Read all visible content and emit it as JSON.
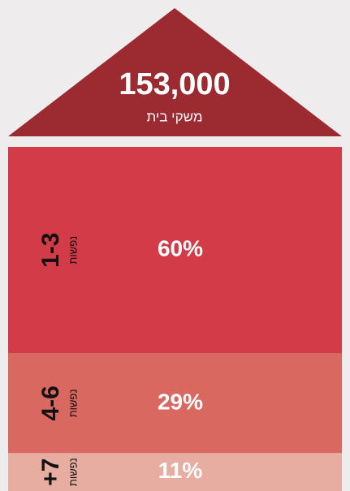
{
  "chart_data": {
    "type": "stacked-house",
    "total": {
      "value": 153000,
      "label": "153,000"
    },
    "subtitle": "משקי בית",
    "roof_color": "#9b2a31",
    "categories": [
      "1-3",
      "4-6",
      "+7"
    ],
    "category_unit": "נפשות",
    "values": [
      60,
      29,
      11
    ],
    "value_labels": [
      "60%",
      "29%",
      "11%"
    ],
    "colors": [
      "#d33b48",
      "#d86860",
      "#e8ada1"
    ]
  }
}
